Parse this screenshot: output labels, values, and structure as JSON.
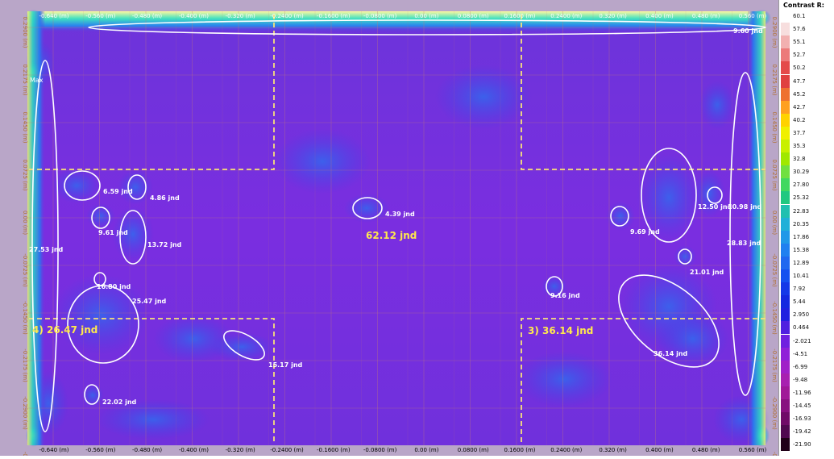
{
  "map": {
    "x_ticks": [
      "-0.640 (m)",
      "-0.560 (m)",
      "-0.480 (m)",
      "-0.400 (m)",
      "-0.320 (m)",
      "-0.2400 (m)",
      "-0.1600 (m)",
      "-0.0800 (m)",
      "0.00 (m)",
      "0.0800 (m)",
      "0.1600 (m)",
      "0.2400 (m)",
      "0.320 (m)",
      "0.400 (m)",
      "0.480 (m)",
      "0.560 (m)"
    ],
    "y_ticks": [
      "0.2900 (m)",
      "0.2175 (m)",
      "0.1450 (m)",
      "0.0725 (m)",
      "0.00 (m)",
      "-0.0725 (m)",
      "-0.1450 (m)",
      "-0.2175 (m)",
      "-0.2900 (m)"
    ],
    "y_ticks_left": [
      "0.2900 (m)",
      "0.2175 (m)",
      "0.1450 (m)",
      "0.0725 (m)",
      "0.00 (m)",
      "-0.0725 (m)",
      "-0.1450 (m)",
      "-0.2175 (m)",
      "-0.2900 (m)",
      "-0.363"
    ],
    "y_ticks_right": [
      "0.2900 (m)",
      "0.2175 (m)",
      "0.1450 (m)",
      "0.0725 (m)",
      "0.00 (m)",
      "-0.0725 (m)",
      "-0.1450 (m)",
      "-0.2175 (m)",
      "-0.2900 (m)",
      "-0.363"
    ],
    "max_label": "Max",
    "annotations": [
      "9.60 jnd",
      "6.59 jnd",
      "4.86 jnd",
      "9.61 jnd",
      "13.72 jnd",
      "27.53 jnd",
      "16.80 jnd",
      "25.47 jnd",
      "22.02 jnd",
      "15.17 jnd",
      "4.39 jnd",
      "9.69 jnd",
      "12.50 jnd",
      "10.98 jnd",
      "28.83 jnd",
      "21.01 jnd",
      "9.16 jnd",
      "36.14 jnd"
    ],
    "zone_labels": [
      "62.12 jnd",
      "4) 26.47 jnd",
      "3) 36.14 jnd"
    ],
    "colors": {
      "overlay": "#ffffff",
      "zone_line": "#f7e27a",
      "zone_text": "#ffe94d",
      "grid": "#c07a7a",
      "bg_top": "#6f30d8",
      "bg_mid": "#7c2de0"
    }
  },
  "legend": {
    "title": "Contrast R:",
    "values": [
      "60.1",
      "57.6",
      "55.1",
      "52.7",
      "50.2",
      "47.7",
      "45.2",
      "42.7",
      "40.2",
      "37.7",
      "35.3",
      "32.8",
      "30.29",
      "27.80",
      "25.32",
      "22.83",
      "20.35",
      "17.86",
      "15.38",
      "12.89",
      "10.41",
      "7.92",
      "5.44",
      "2.950",
      "0.464",
      "-2.021",
      "-4.51",
      "-6.99",
      "-9.48",
      "-11.96",
      "-14.45",
      "-16.93",
      "-19.42",
      "-21.90"
    ],
    "colors": [
      "#ffffff",
      "#f7dede",
      "#f2b0b0",
      "#ec7a7a",
      "#e44a4a",
      "#e04040",
      "#ee7030",
      "#ffa020",
      "#ffd200",
      "#f0f000",
      "#c8f000",
      "#a0e800",
      "#70e040",
      "#40d860",
      "#20c880",
      "#20c0b0",
      "#20b0d8",
      "#2098e8",
      "#2080f0",
      "#2068f0",
      "#1450f0",
      "#1438e8",
      "#1428e0",
      "#2020e0",
      "#5020e0",
      "#7020e0",
      "#9020d8",
      "#a020c8",
      "#a820b0",
      "#a01898",
      "#881080",
      "#700a68",
      "#500850",
      "#200018"
    ]
  }
}
